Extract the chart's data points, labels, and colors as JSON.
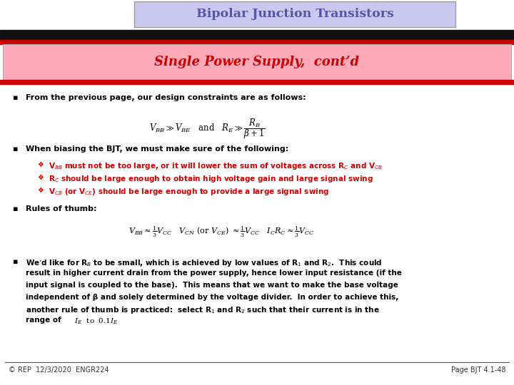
{
  "title": "Bipolar Junction Transistors",
  "subtitle": "Single Power Supply,  cont’d",
  "title_bg": "#c8c8f0",
  "subtitle_bg": "#ffaabb",
  "slide_bg": "#ffffff",
  "title_text_color": "#5555aa",
  "subtitle_text_color": "#cc0000",
  "black_bar_color": "#111111",
  "red_bar_color": "#cc0000",
  "footer_left": "© REP  12/3/2020  ENGR224",
  "footer_right": "Page BJT 4.1-48",
  "bullet1": "From the previous page, our design constraints are as follows:",
  "bullet2": "When biasing the BJT, we must make sure of the following:",
  "sub1": "V$_{BB}$ must not be too large, or it will lower the sum of voltages across R$_C$ and V$_{CB}$",
  "sub2": "R$_C$ should be large enough to obtain high voltage gain and large signal swing",
  "sub3": "V$_{CB}$ (or V$_{CE}$) should be large enough to provide a large signal swing",
  "bullet3": "Rules of thumb:",
  "bullet4_line1": "We’d like for R$_B$ to be small, which is achieved by low values of R$_1$ and R$_2$.  This could",
  "bullet4_line2": "result in higher current drain from the power supply, hence lower input resistance (if the",
  "bullet4_line3": "input signal is coupled to the base).  This means that we want to make the base voltage",
  "bullet4_line4": "independent of β and solely determined by the voltage divider.  In order to achieve this,",
  "bullet4_line5": "another rule of thumb is practiced:  select R$_1$ and R$_2$ such that their current is in the",
  "bullet4_line6": "range of"
}
